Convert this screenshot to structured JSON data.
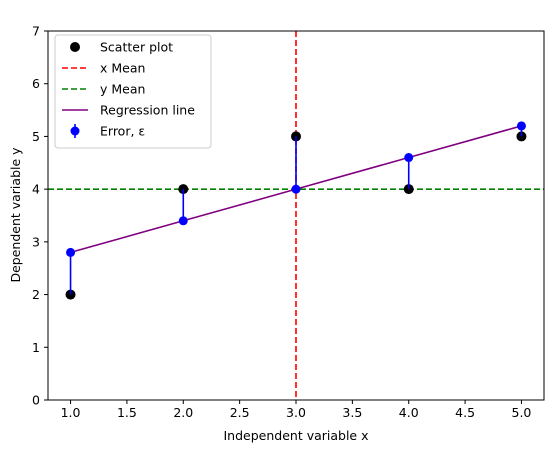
{
  "chart_data": {
    "type": "scatter",
    "title": "",
    "xlabel": "Independent variable x",
    "ylabel": "Dependent variable  y",
    "xlim": [
      0.8,
      5.2
    ],
    "ylim": [
      0,
      7
    ],
    "xticks": [
      "1.0",
      "1.5",
      "2.0",
      "2.5",
      "3.0",
      "3.5",
      "4.0",
      "4.5",
      "5.0"
    ],
    "yticks": [
      "0",
      "1",
      "2",
      "3",
      "4",
      "5",
      "6",
      "7"
    ],
    "grid": false,
    "legend_position": "top-left",
    "series": [
      {
        "name": "Scatter plot",
        "kind": "scatter",
        "color": "#000000",
        "points": [
          [
            1,
            2
          ],
          [
            2,
            4
          ],
          [
            3,
            5
          ],
          [
            4,
            4
          ],
          [
            5,
            5
          ]
        ]
      },
      {
        "name": "x Mean",
        "kind": "vline",
        "color": "#ff0000",
        "style": "dashed",
        "x": 3
      },
      {
        "name": "y Mean",
        "kind": "hline",
        "color": "#008000",
        "style": "dashed",
        "y": 4
      },
      {
        "name": "Regression line",
        "kind": "line",
        "color": "#800080",
        "points": [
          [
            1,
            2.8
          ],
          [
            2,
            3.4
          ],
          [
            3,
            4.0
          ],
          [
            4,
            4.6
          ],
          [
            5,
            5.2
          ]
        ]
      },
      {
        "name": "Error,  ε",
        "kind": "errorbar",
        "color": "#0000ff",
        "points": [
          [
            1,
            2.8
          ],
          [
            2,
            3.4
          ],
          [
            3,
            4.0
          ],
          [
            4,
            4.6
          ],
          [
            5,
            5.2
          ]
        ],
        "targets": [
          2,
          4,
          5,
          4,
          5
        ]
      }
    ],
    "legend": [
      {
        "label": "Scatter plot",
        "kind": "scatter",
        "color": "#000000"
      },
      {
        "label": "x Mean",
        "kind": "dashed",
        "color": "#ff0000"
      },
      {
        "label": "y Mean",
        "kind": "dashed",
        "color": "#008000"
      },
      {
        "label": "Regression line",
        "kind": "line",
        "color": "#800080"
      },
      {
        "label": "Error,  ε",
        "kind": "errorbar",
        "color": "#0000ff"
      }
    ]
  }
}
